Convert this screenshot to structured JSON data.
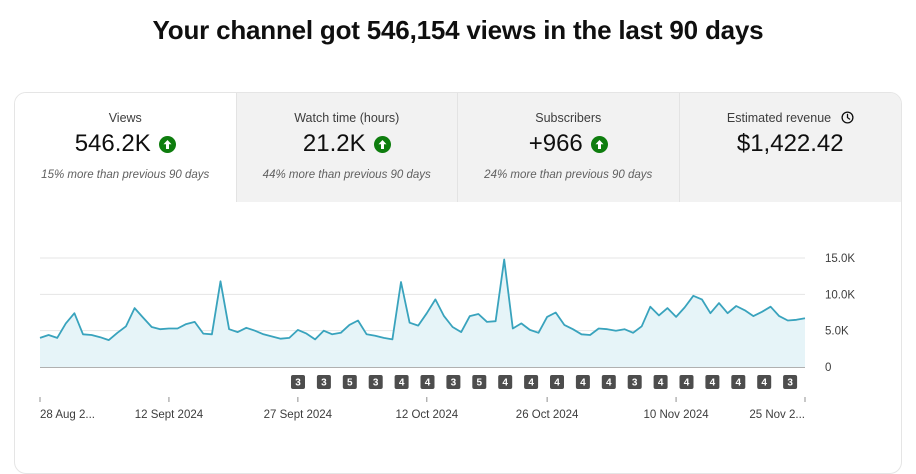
{
  "headline": "Your channel got 546,154 views in the last 90 days",
  "tabs": [
    {
      "label": "Views",
      "value": "546.2K",
      "sub": "15% more than previous 90 days",
      "trend": "up",
      "active": true
    },
    {
      "label": "Watch time (hours)",
      "value": "21.2K",
      "sub": "44% more than previous 90 days",
      "trend": "up",
      "active": false
    },
    {
      "label": "Subscribers",
      "value": "+966",
      "sub": "24% more than previous 90 days",
      "trend": "up",
      "active": false
    },
    {
      "label": "Estimated revenue",
      "value": "$1,422.42",
      "sub": "",
      "trend": "",
      "active": false,
      "icon": "clock-icon"
    }
  ],
  "colors": {
    "line": "#39a3bd",
    "fill": "#e6f4f8",
    "trend_up": "#0e7d0e",
    "badge": "#4d4d4d"
  },
  "chart_data": {
    "type": "area",
    "series": [
      {
        "values": [
          4000,
          4400,
          4000,
          6000,
          7400,
          4500,
          4400,
          4100,
          3700,
          4700,
          5600,
          8100,
          6800,
          5500,
          5200,
          5300,
          5300,
          5900,
          6200,
          4600,
          4500,
          11800,
          5200,
          4800,
          5400,
          5000,
          4500,
          4200,
          3900,
          4000,
          5100,
          4600,
          3800,
          5000,
          4500,
          4700,
          5800,
          6400,
          4500,
          4300,
          4000,
          3800,
          11700,
          6100,
          5700,
          7400,
          9300,
          7000,
          5500,
          4800,
          7000,
          7300,
          6200,
          6300,
          14800,
          5300,
          6000,
          5100,
          4700,
          6900,
          7500,
          5800,
          5200,
          4500,
          4400,
          5300,
          5200,
          5000,
          5200,
          4700,
          5600,
          8300,
          7100,
          8100,
          6900,
          8200,
          9800,
          9300,
          7400,
          8800,
          7400,
          8400,
          7800,
          7000,
          7600,
          8300,
          7000,
          6400,
          6500,
          6700
        ]
      }
    ],
    "x_start": "28 Aug 2024",
    "ylim": [
      0,
      15000
    ],
    "y_ticks": [
      "15.0K",
      "10.0K",
      "5.0K",
      "0"
    ],
    "x_ticks": [
      "28 Aug 2...",
      "12 Sept 2024",
      "27 Sept 2024",
      "12 Oct 2024",
      "26 Oct 2024",
      "10 Nov 2024",
      "25 Nov 2..."
    ],
    "x_tick_index": [
      0,
      15,
      30,
      45,
      59,
      74,
      89
    ],
    "annotations": [
      "3",
      "3",
      "5",
      "3",
      "4",
      "4",
      "3",
      "5",
      "4",
      "4",
      "4",
      "4",
      "4",
      "3",
      "4",
      "4",
      "4",
      "4",
      "4",
      "3"
    ],
    "grid": true,
    "legend": "none"
  }
}
